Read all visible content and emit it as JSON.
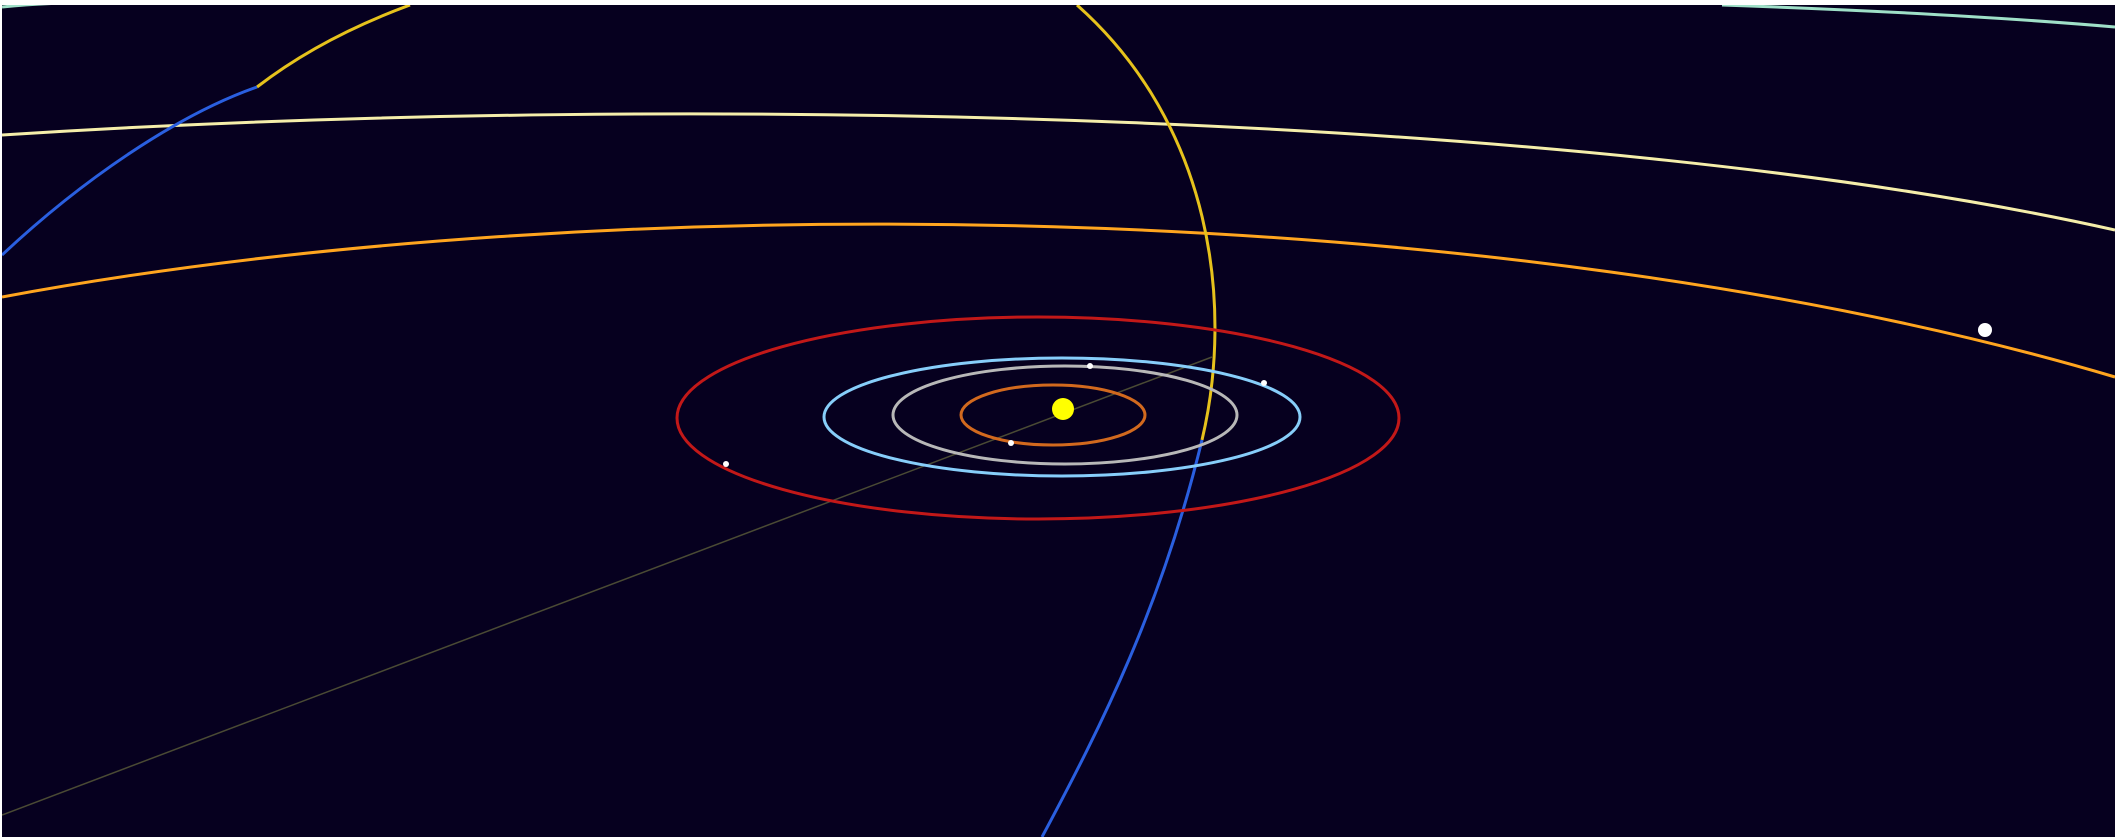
{
  "scene": {
    "background": "#06001f",
    "sun": {
      "name": "sun",
      "color": "#ffff00"
    },
    "reference_line": {
      "color": "#4a4a34"
    },
    "orbits": [
      {
        "name": "mercury-orbit",
        "color": "#d2691e"
      },
      {
        "name": "venus-orbit",
        "color": "#b8b8b8"
      },
      {
        "name": "earth-orbit",
        "color": "#87cefa"
      },
      {
        "name": "mars-orbit",
        "color": "#c21818"
      },
      {
        "name": "jupiter-orbit",
        "color": "#ffa51f"
      },
      {
        "name": "saturn-orbit",
        "color": "#f5eeaa"
      },
      {
        "name": "outer-orbit-teal",
        "color": "#9fe0c8"
      },
      {
        "name": "comet-orbit-yellow",
        "color": "#e6c21c"
      },
      {
        "name": "comet-orbit-blue",
        "color": "#2a5fe0"
      }
    ],
    "planets": [
      {
        "name": "mercury-marker",
        "color": "#ffffff"
      },
      {
        "name": "venus-marker",
        "color": "#ffffff"
      },
      {
        "name": "earth-marker",
        "color": "#ffffff"
      },
      {
        "name": "mars-marker",
        "color": "#ffffff"
      },
      {
        "name": "jupiter-marker",
        "color": "#ffffff"
      }
    ]
  }
}
